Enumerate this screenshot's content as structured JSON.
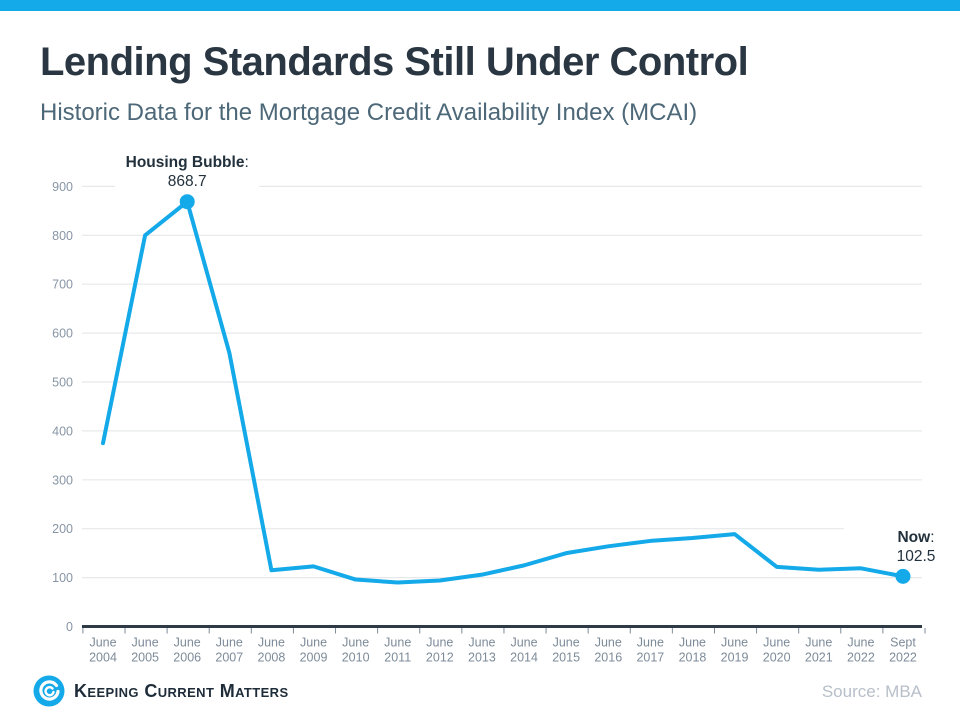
{
  "page": {
    "title": "Lending Standards Still Under Control",
    "subtitle": "Historic Data for the Mortgage Credit Availability Index (MCAI)",
    "source": "Source: MBA",
    "logo_text": "Keeping Current Matters",
    "accent_color": "#14A9E8",
    "title_color": "#2A3642",
    "subtitle_color": "#4D6878"
  },
  "chart_data": {
    "type": "line",
    "title": "",
    "xlabel": "",
    "ylabel": "",
    "ylim": [
      0,
      900
    ],
    "ytick_interval": 100,
    "grid": "horizontal",
    "legend": "none",
    "line_color": "#14A9E8",
    "gridline_color": "#E7E8EA",
    "axis_color": "#2E3B47",
    "tick_label_color": "#7D8B99",
    "annotation_color": "#22313C",
    "categories": [
      "June 2004",
      "June 2005",
      "June 2006",
      "June 2007",
      "June 2008",
      "June 2009",
      "June 2010",
      "June 2011",
      "June 2012",
      "June 2013",
      "June 2014",
      "June 2015",
      "June 2016",
      "June 2017",
      "June 2018",
      "June 2019",
      "June 2020",
      "June 2021",
      "June 2022",
      "Sept 2022"
    ],
    "values": [
      375,
      800,
      868.7,
      560,
      115,
      123,
      96,
      90,
      94,
      106,
      125,
      150,
      164,
      175,
      181,
      189,
      122,
      116,
      119,
      102.5
    ],
    "annotations": [
      {
        "index": 2,
        "label": "Housing Bubble",
        "value": "868.7",
        "dx": 0
      },
      {
        "index": 19,
        "label": "Now",
        "value": "102.5",
        "dx": 13
      }
    ]
  }
}
